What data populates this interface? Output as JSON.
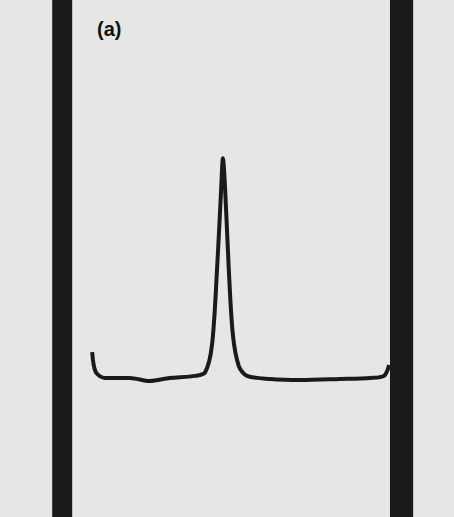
{
  "chart_data": {
    "type": "line",
    "title": "(a)",
    "x": [
      20.3,
      21.1,
      23.1,
      28.6,
      33.0,
      37.4,
      43.0,
      45.2,
      46.7,
      47.8,
      48.7,
      49.1,
      49.6,
      50.4,
      51.3,
      52.6,
      54.4,
      59.5,
      66.1,
      74.9,
      81.5,
      84.6,
      85.7
    ],
    "values": [
      31.9,
      28.0,
      26.9,
      26.9,
      26.3,
      26.9,
      27.3,
      28.0,
      33.3,
      47.8,
      63.2,
      69.4,
      63.2,
      47.8,
      35.2,
      29.2,
      27.3,
      26.7,
      26.5,
      26.7,
      26.9,
      27.3,
      29.4
    ],
    "color": "#1a1a1a",
    "bands": [
      [
        11.5,
        15.9
      ],
      [
        85.9,
        91.0
      ]
    ],
    "xlim": [
      0,
      100
    ],
    "ylim": [
      0,
      100
    ],
    "tick_labels": false,
    "grid": false
  }
}
